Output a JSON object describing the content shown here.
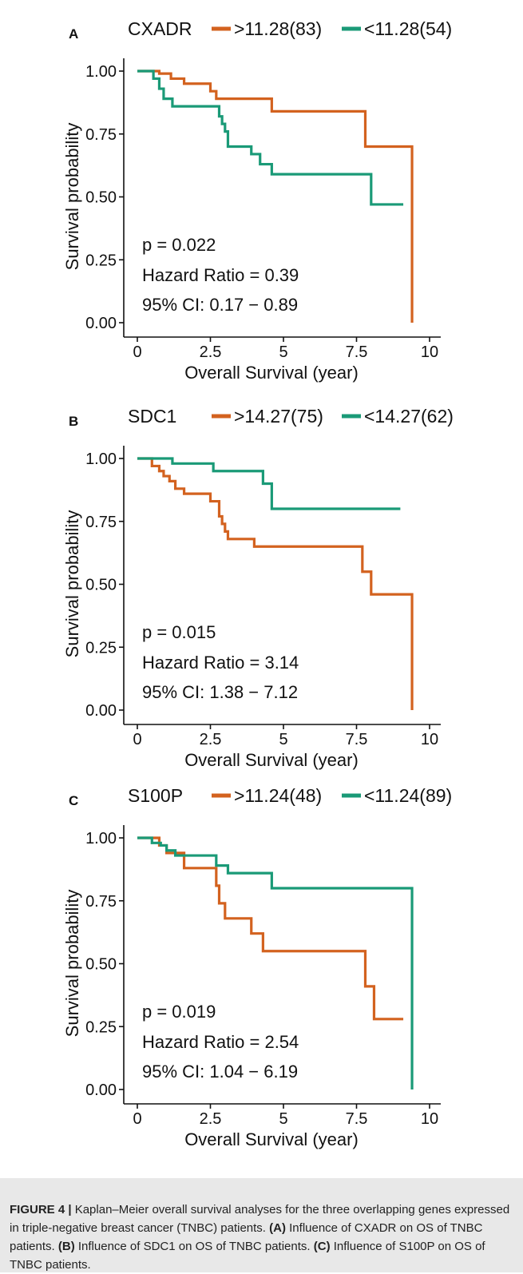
{
  "chart_data": [
    {
      "type": "line",
      "step": true,
      "panel_label": "A",
      "gene": "CXADR",
      "xlabel": "Overall Survival (year)",
      "ylabel": "Survival probability",
      "xlim": [
        0,
        10
      ],
      "ylim": [
        0,
        1
      ],
      "x_ticks": [
        "0",
        "2.5",
        "5",
        "7.5",
        "10"
      ],
      "x_tick_values": [
        0,
        2.5,
        5,
        7.5,
        10
      ],
      "y_ticks": [
        "0.00",
        "0.25",
        "0.50",
        "0.75",
        "1.00"
      ],
      "y_tick_values": [
        0,
        0.25,
        0.5,
        0.75,
        1
      ],
      "legend_position": "top",
      "series": [
        {
          "name": ">11.28(83)",
          "color": "#d3621f",
          "x": [
            0,
            0.75,
            1.15,
            1.6,
            2.5,
            2.7,
            4.6,
            7.8,
            9.4,
            9.4
          ],
          "y": [
            1.0,
            0.99,
            0.97,
            0.95,
            0.92,
            0.89,
            0.84,
            0.7,
            0.7,
            0.0
          ]
        },
        {
          "name": "<11.28(54)",
          "color": "#1a9a77",
          "x": [
            0,
            0.55,
            0.75,
            0.9,
            1.2,
            1.5,
            2.8,
            2.9,
            3.0,
            3.1,
            3.9,
            4.2,
            4.6,
            8.0,
            9.1
          ],
          "y": [
            1.0,
            0.97,
            0.93,
            0.89,
            0.86,
            0.86,
            0.82,
            0.79,
            0.76,
            0.7,
            0.67,
            0.63,
            0.59,
            0.47,
            0.47
          ]
        }
      ],
      "annotations": [
        "p = 0.022",
        "Hazard Ratio = 0.39",
        "95% CI: 0.17 − 0.89"
      ]
    },
    {
      "type": "line",
      "step": true,
      "panel_label": "B",
      "gene": "SDC1",
      "xlabel": "Overall Survival (year)",
      "ylabel": "Survival probability",
      "xlim": [
        0,
        10
      ],
      "ylim": [
        0,
        1
      ],
      "x_ticks": [
        "0",
        "2.5",
        "5",
        "7.5",
        "10"
      ],
      "x_tick_values": [
        0,
        2.5,
        5,
        7.5,
        10
      ],
      "y_ticks": [
        "0.00",
        "0.25",
        "0.50",
        "0.75",
        "1.00"
      ],
      "y_tick_values": [
        0,
        0.25,
        0.5,
        0.75,
        1
      ],
      "legend_position": "top",
      "series": [
        {
          "name": ">14.27(75)",
          "color": "#d3621f",
          "x": [
            0,
            0.5,
            0.75,
            0.9,
            1.1,
            1.3,
            1.6,
            2.5,
            2.8,
            2.9,
            3.0,
            3.1,
            4.0,
            7.7,
            8.0,
            9.4,
            9.4
          ],
          "y": [
            1.0,
            0.97,
            0.95,
            0.93,
            0.91,
            0.88,
            0.86,
            0.83,
            0.77,
            0.74,
            0.71,
            0.68,
            0.65,
            0.55,
            0.46,
            0.46,
            0.0
          ]
        },
        {
          "name": "<14.27(62)",
          "color": "#1a9a77",
          "x": [
            0,
            1.2,
            2.6,
            4.3,
            4.6,
            9.0
          ],
          "y": [
            1.0,
            0.98,
            0.95,
            0.9,
            0.8,
            0.8
          ]
        }
      ],
      "annotations": [
        "p = 0.015",
        "Hazard Ratio = 3.14",
        "95% CI: 1.38 − 7.12"
      ]
    },
    {
      "type": "line",
      "step": true,
      "panel_label": "C",
      "gene": "S100P",
      "xlabel": "Overall Survival (year)",
      "ylabel": "Survival probability",
      "xlim": [
        0,
        10
      ],
      "ylim": [
        0,
        1
      ],
      "x_ticks": [
        "0",
        "2.5",
        "5",
        "7.5",
        "10"
      ],
      "x_tick_values": [
        0,
        2.5,
        5,
        7.5,
        10
      ],
      "y_ticks": [
        "0.00",
        "0.25",
        "0.50",
        "0.75",
        "1.00"
      ],
      "y_tick_values": [
        0,
        0.25,
        0.5,
        0.75,
        1
      ],
      "legend_position": "top",
      "series": [
        {
          "name": ">11.24(48)",
          "color": "#d3621f",
          "x": [
            0,
            0.75,
            1.0,
            1.6,
            2.7,
            2.8,
            3.0,
            3.9,
            4.3,
            7.8,
            8.1,
            9.1
          ],
          "y": [
            1.0,
            0.97,
            0.94,
            0.88,
            0.81,
            0.74,
            0.68,
            0.62,
            0.55,
            0.41,
            0.28,
            0.28
          ]
        },
        {
          "name": "<11.24(89)",
          "color": "#1a9a77",
          "x": [
            0,
            0.5,
            0.8,
            1.0,
            1.3,
            1.7,
            2.7,
            3.1,
            4.6,
            9.4,
            9.4
          ],
          "y": [
            1.0,
            0.98,
            0.97,
            0.95,
            0.93,
            0.93,
            0.89,
            0.86,
            0.8,
            0.8,
            0.0
          ]
        }
      ],
      "annotations": [
        "p = 0.019",
        "Hazard Ratio = 2.54",
        "95% CI: 1.04 − 6.19"
      ]
    }
  ],
  "caption": {
    "label": "FIGURE 4 |",
    "text_1": " Kaplan–Meier overall survival analyses for the three overlapping genes expressed in triple-negative breast cancer (TNBC) patients. ",
    "a_label": "(A)",
    "text_a": " Influence of CXADR on OS of TNBC patients. ",
    "b_label": "(B)",
    "text_b": " Influence of SDC1 on OS of TNBC patients. ",
    "c_label": "(C)",
    "text_c": " Influence of S100P on OS of TNBC patients."
  }
}
